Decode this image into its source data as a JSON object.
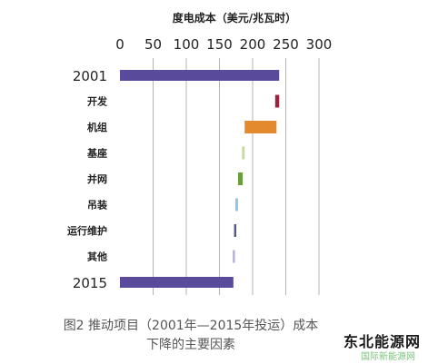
{
  "chart_data": {
    "type": "bar",
    "orientation": "horizontal",
    "subtype": "waterfall",
    "title": "度电成本（美元/兆瓦时）",
    "xlim": [
      0,
      300
    ],
    "ticks": [
      "0",
      "50",
      "100",
      "150",
      "200",
      "250",
      "300"
    ],
    "tick_values": [
      0,
      50,
      100,
      150,
      200,
      250,
      300
    ],
    "grid": true,
    "bars": [
      {
        "label": "2001",
        "start": 0,
        "end": 240,
        "color": "#5a4a9c",
        "kind": "total"
      },
      {
        "label": "开发",
        "start": 234,
        "end": 240,
        "color": "#a0213c",
        "kind": "step"
      },
      {
        "label": "机组",
        "start": 188,
        "end": 236,
        "color": "#e48a2e",
        "kind": "step"
      },
      {
        "label": "基座",
        "start": 184,
        "end": 188,
        "color": "#c9d6a8",
        "kind": "step"
      },
      {
        "label": "并网",
        "start": 178,
        "end": 185,
        "color": "#6a9e3a",
        "kind": "step"
      },
      {
        "label": "吊装",
        "start": 174,
        "end": 178,
        "color": "#8fc6e6",
        "kind": "step"
      },
      {
        "label": "运行维护",
        "start": 172,
        "end": 174,
        "color": "#555a8a",
        "kind": "step"
      },
      {
        "label": "其他",
        "start": 170,
        "end": 172,
        "color": "#b9b0d8",
        "kind": "step"
      },
      {
        "label": "2015",
        "start": 0,
        "end": 171,
        "color": "#5a4a9c",
        "kind": "total"
      }
    ]
  },
  "caption": {
    "line1": "图2 推动项目（2001年—2015年投运）成本",
    "line2": "下降的主要因素"
  },
  "watermark": {
    "text": "东北能源网",
    "subtext": "国际新能源网"
  }
}
